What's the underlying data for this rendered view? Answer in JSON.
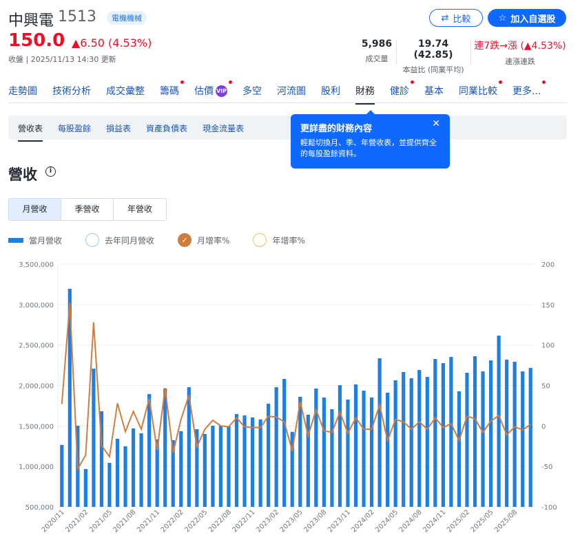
{
  "stock": {
    "name": "中興電",
    "code": "1513",
    "tag": "電機機械",
    "price": "150.0",
    "change": "▲6.50 (4.53%)",
    "updated": "收盤 | 2025/11/13 14:30 更新"
  },
  "buttons": {
    "compare": "比較",
    "add_watchlist": "加入自選股"
  },
  "stats": [
    {
      "value": "5,986",
      "label": "成交量"
    },
    {
      "value": "19.74 (42.85)",
      "label": "本益比 (同業平均)"
    },
    {
      "value": "連7跌→漲 (▲4.53%)",
      "label": "連漲連跌"
    }
  ],
  "nav": [
    {
      "label": "走勢圖"
    },
    {
      "label": "技術分析"
    },
    {
      "label": "成交彙整"
    },
    {
      "label": "籌碼",
      "dot": true
    },
    {
      "label": "估價",
      "badge": "VIP",
      "dot": true
    },
    {
      "label": "多空"
    },
    {
      "label": "河流圖"
    },
    {
      "label": "股利"
    },
    {
      "label": "財務",
      "active": true
    },
    {
      "label": "健診",
      "dot": true
    },
    {
      "label": "基本"
    },
    {
      "label": "同業比較",
      "dot": true
    },
    {
      "label": "更多...",
      "dot": true
    }
  ],
  "subtabs": [
    {
      "label": "營收表",
      "active": true
    },
    {
      "label": "每股盈餘"
    },
    {
      "label": "損益表"
    },
    {
      "label": "資產負債表"
    },
    {
      "label": "現金流量表"
    }
  ],
  "popover": {
    "title": "更詳盡的財務內容",
    "desc": "輕鬆切換月、季、年營收表，並提供齊全的每股盈餘資料。",
    "close": "✕"
  },
  "section": {
    "title": "營收",
    "info": "i"
  },
  "periods": [
    {
      "label": "月營收",
      "active": true
    },
    {
      "label": "季營收"
    },
    {
      "label": "年營收"
    }
  ],
  "legend": [
    {
      "label": "當月營收"
    },
    {
      "label": "去年同月營收"
    },
    {
      "label": "月增率%"
    },
    {
      "label": "年增率%"
    }
  ],
  "colors": {
    "bar": "#1e7fe0",
    "line": "#d07c3f",
    "accent": "#0f69ff",
    "up": "#eb0f29"
  },
  "chart_data": {
    "type": "bar+line",
    "x": [
      "2020/11",
      "2020/12",
      "2021/01",
      "2021/02",
      "2021/03",
      "2021/04",
      "2021/05",
      "2021/06",
      "2021/07",
      "2021/08",
      "2021/09",
      "2021/10",
      "2021/11",
      "2021/12",
      "2022/01",
      "2022/02",
      "2022/03",
      "2022/04",
      "2022/05",
      "2022/06",
      "2022/07",
      "2022/08",
      "2022/09",
      "2022/10",
      "2022/11",
      "2022/12",
      "2023/01",
      "2023/02",
      "2023/03",
      "2023/04",
      "2023/05",
      "2023/06",
      "2023/07",
      "2023/08",
      "2023/09",
      "2023/10",
      "2023/11",
      "2023/12",
      "2024/01",
      "2024/02",
      "2024/03",
      "2024/04",
      "2024/05",
      "2024/06",
      "2024/07",
      "2024/08",
      "2024/09",
      "2024/10",
      "2024/11",
      "2024/12",
      "2025/01",
      "2025/02",
      "2025/03",
      "2025/04",
      "2025/05",
      "2025/06",
      "2025/07",
      "2025/08",
      "2025/09",
      "2025/10"
    ],
    "x_tick_labels": [
      "2020/11",
      "2021/02",
      "2021/05",
      "2021/08",
      "2021/11",
      "2022/02",
      "2022/05",
      "2022/08",
      "2022/11",
      "2023/02",
      "2023/05",
      "2023/08",
      "2023/11",
      "2024/02",
      "2024/05",
      "2024/08",
      "2024/11",
      "2025/02",
      "2025/05",
      "2025/08"
    ],
    "series": [
      {
        "name": "當月營收",
        "axis": "left",
        "type": "bar",
        "values": [
          1265000,
          3195000,
          1503000,
          967000,
          2208000,
          1681000,
          1044000,
          1341000,
          1248000,
          1469000,
          1409000,
          1894000,
          1333000,
          1962000,
          1324000,
          1435000,
          1979000,
          1460000,
          1401000,
          1503000,
          1503000,
          1494000,
          1647000,
          1630000,
          1605000,
          1580000,
          1775000,
          1979000,
          2081000,
          1426000,
          1860000,
          1639000,
          1962000,
          1851000,
          1707000,
          2004000,
          1826000,
          2013000,
          1936000,
          1851000,
          2336000,
          1911000,
          2064000,
          2166000,
          2089000,
          2191000,
          2106000,
          2327000,
          2276000,
          2353000,
          1928000,
          2157000,
          2361000,
          2174000,
          2310000,
          2616000,
          2319000,
          2293000,
          2174000,
          2217000
        ]
      },
      {
        "name": "月增率%",
        "axis": "right",
        "type": "line",
        "values": [
          27,
          152,
          -53,
          -36,
          128,
          -24,
          -38,
          28,
          -7,
          18,
          -4,
          34,
          -30,
          47,
          -33,
          8,
          38,
          -26,
          -4,
          7,
          0,
          -1,
          10,
          -1,
          -2,
          -2,
          12,
          11,
          5,
          -31,
          30,
          -12,
          20,
          -6,
          -8,
          17,
          -9,
          10,
          -4,
          -4,
          26,
          -18,
          8,
          5,
          -4,
          5,
          -4,
          10,
          -2,
          3,
          -18,
          12,
          9,
          -8,
          6,
          13,
          -11,
          -1,
          -5,
          2
        ]
      }
    ],
    "y_left": {
      "min": 500000,
      "max": 3500000,
      "ticks": [
        "500,000",
        "1,000,000",
        "1,500,000",
        "2,000,000",
        "2,500,000",
        "3,000,000",
        "3,500,000"
      ]
    },
    "y_right": {
      "min": -100,
      "max": 200,
      "ticks": [
        "-100",
        "-50",
        "0",
        "50",
        "100",
        "150",
        "200"
      ]
    },
    "grid": true
  }
}
